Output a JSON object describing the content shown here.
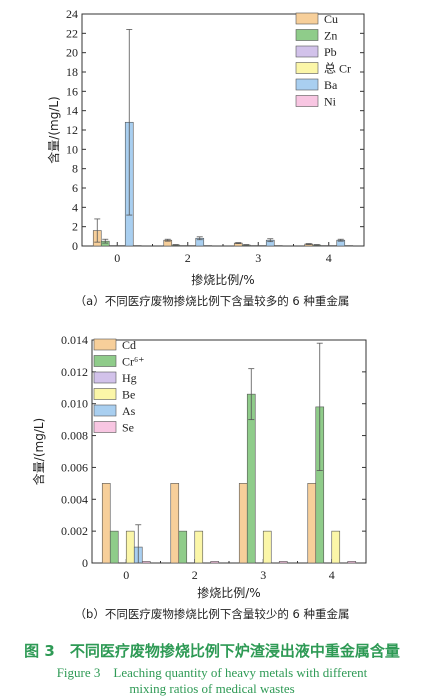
{
  "chart_data": [
    {
      "type": "bar",
      "panel": "(a)",
      "categories": [
        "0",
        "2",
        "3",
        "4"
      ],
      "series": [
        {
          "name": "Cu",
          "color": "#f7cf9a",
          "values": [
            1.6,
            0.6,
            0.3,
            0.2
          ],
          "errors": [
            1.2,
            0.1,
            0.05,
            0.05
          ]
        },
        {
          "name": "Zn",
          "color": "#8fcc8a",
          "values": [
            0.5,
            0.1,
            0.1,
            0.1
          ],
          "errors": [
            0.2,
            0.05,
            0.05,
            0.05
          ]
        },
        {
          "name": "Pb",
          "color": "#d2c2ea",
          "values": [
            0.05,
            0.05,
            0.05,
            0.05
          ],
          "errors": [
            0,
            0,
            0,
            0
          ]
        },
        {
          "name": "总 Cr",
          "color": "#fbf6a8",
          "values": [
            0.05,
            0.05,
            0.05,
            0.05
          ],
          "errors": [
            0,
            0,
            0,
            0
          ]
        },
        {
          "name": "Ba",
          "color": "#a9cff0",
          "values": [
            12.8,
            0.8,
            0.6,
            0.6
          ],
          "errors": [
            9.6,
            0.15,
            0.15,
            0.1
          ]
        },
        {
          "name": "Ni",
          "color": "#f8c6e2",
          "values": [
            0.05,
            0.05,
            0.05,
            0.05
          ],
          "errors": [
            0,
            0,
            0,
            0
          ]
        }
      ],
      "xlabel": "掺烧比例/%",
      "ylabel": "含量/(mg/L)",
      "ylim": [
        0,
        24
      ],
      "yticks": [
        "0",
        "2",
        "4",
        "6",
        "8",
        "10",
        "12",
        "14",
        "16",
        "18",
        "20",
        "22",
        "24"
      ],
      "legend": "top-right",
      "caption": "（a）不同医疗废物掺烧比例下含量较多的 6 种重金属"
    },
    {
      "type": "bar",
      "panel": "(b)",
      "categories": [
        "0",
        "2",
        "3",
        "4"
      ],
      "series": [
        {
          "name": "Cd",
          "color": "#f7cf9a",
          "values": [
            0.005,
            0.005,
            0.005,
            0.005
          ],
          "errors": [
            0,
            0,
            0,
            0
          ]
        },
        {
          "name": "Cr⁶⁺",
          "color": "#8fcc8a",
          "values": [
            0.002,
            0.002,
            0.0106,
            0.0098
          ],
          "errors": [
            0,
            0,
            0.0016,
            0.004
          ]
        },
        {
          "name": "Hg",
          "color": "#d2c2ea",
          "values": [
            0,
            0,
            0,
            0
          ],
          "errors": [
            0,
            0,
            0,
            0
          ]
        },
        {
          "name": "Be",
          "color": "#fbf6a8",
          "values": [
            0.002,
            0.002,
            0.002,
            0.002
          ],
          "errors": [
            0,
            0,
            0,
            0
          ]
        },
        {
          "name": "As",
          "color": "#a9cff0",
          "values": [
            0.001,
            0,
            0,
            0
          ],
          "errors": [
            0.0014,
            0,
            0,
            0
          ]
        },
        {
          "name": "Se",
          "color": "#f8c6e2",
          "values": [
            0.0001,
            0.0001,
            0.0001,
            0.0001
          ],
          "errors": [
            0,
            0,
            0,
            0
          ]
        }
      ],
      "xlabel": "掺烧比例/%",
      "ylabel": "含量/(mg/L)",
      "ylim": [
        0,
        0.014
      ],
      "yticks": [
        "0",
        "0.002",
        "0.004",
        "0.006",
        "0.008",
        "0.010",
        "0.012",
        "0.014"
      ],
      "legend": "top-left",
      "caption": "（b）不同医疗废物掺烧比例下含量较少的 6 种重金属"
    }
  ],
  "figure_caption": {
    "zh": "图 3　不同医疗废物掺烧比例下炉渣浸出液中重金属含量",
    "en_line1": "Figure 3　Leaching quantity of heavy metals with different",
    "en_line2": "mixing ratios of medical wastes"
  }
}
